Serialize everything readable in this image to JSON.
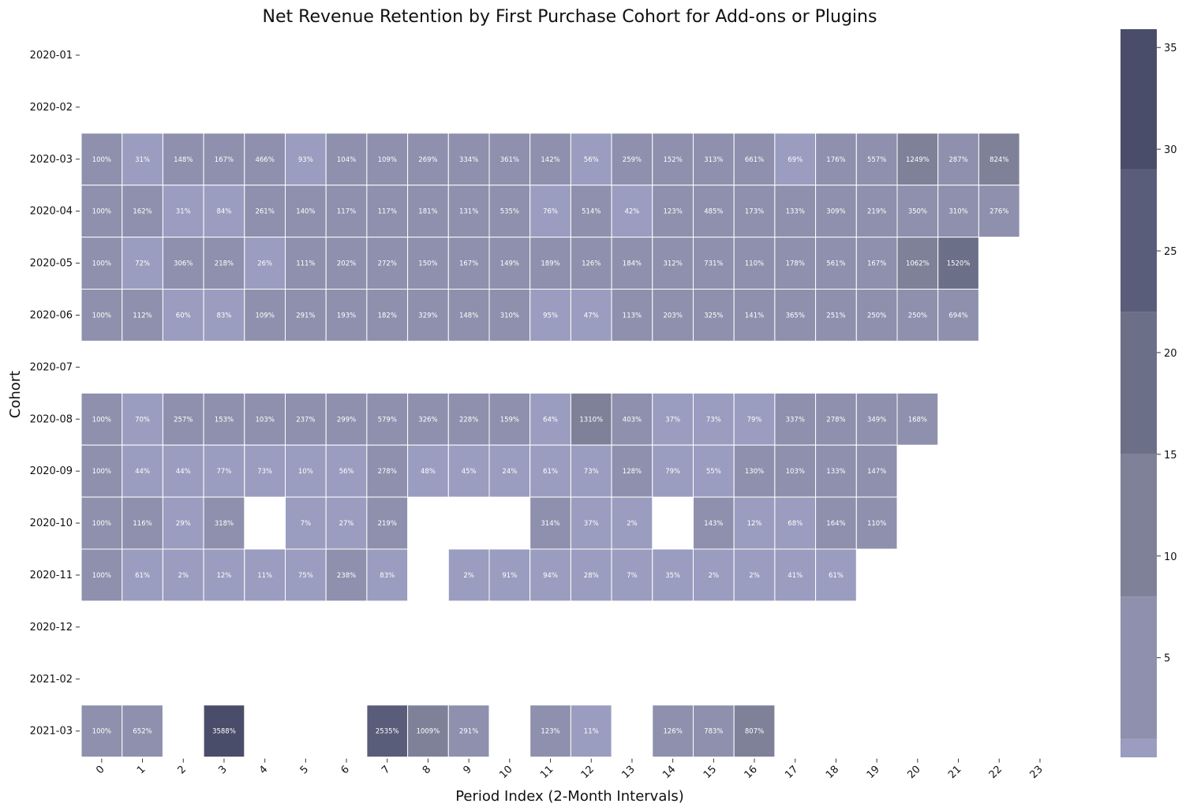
{
  "chart_data": {
    "type": "heatmap",
    "title": "Net Revenue Retention by First Purchase Cohort for Add-ons or Plugins",
    "xlabel": "Period Index (2-Month Intervals)",
    "ylabel": "Cohort",
    "x": [
      "0",
      "1",
      "2",
      "3",
      "4",
      "5",
      "6",
      "7",
      "8",
      "9",
      "10",
      "11",
      "12",
      "13",
      "14",
      "15",
      "16",
      "17",
      "18",
      "19",
      "20",
      "21",
      "22",
      "23"
    ],
    "y": [
      "2020-01",
      "2020-02",
      "2020-03",
      "2020-04",
      "2020-05",
      "2020-06",
      "2020-07",
      "2020-08",
      "2020-09",
      "2020-10",
      "2020-11",
      "2020-12",
      "2021-02",
      "2021-03"
    ],
    "values": [
      [
        null,
        null,
        null,
        null,
        null,
        null,
        null,
        null,
        null,
        null,
        null,
        null,
        null,
        null,
        null,
        null,
        null,
        null,
        null,
        null,
        null,
        null,
        null,
        null
      ],
      [
        null,
        null,
        null,
        null,
        null,
        null,
        null,
        null,
        null,
        null,
        null,
        null,
        null,
        null,
        null,
        null,
        null,
        null,
        null,
        null,
        null,
        null,
        null,
        null
      ],
      [
        100,
        31,
        148,
        167,
        466,
        93,
        104,
        109,
        269,
        334,
        361,
        142,
        56,
        259,
        152,
        313,
        661,
        69,
        176,
        557,
        1249,
        287,
        824,
        null
      ],
      [
        100,
        162,
        31,
        84,
        261,
        140,
        117,
        117,
        181,
        131,
        535,
        76,
        514,
        42,
        123,
        485,
        173,
        133,
        309,
        219,
        350,
        310,
        276,
        null
      ],
      [
        100,
        72,
        306,
        218,
        26,
        111,
        202,
        272,
        150,
        167,
        149,
        189,
        126,
        184,
        312,
        731,
        110,
        178,
        561,
        167,
        1062,
        1520,
        null,
        null
      ],
      [
        100,
        112,
        60,
        83,
        109,
        291,
        193,
        182,
        329,
        148,
        310,
        95,
        47,
        113,
        203,
        325,
        141,
        365,
        251,
        250,
        250,
        694,
        null,
        null
      ],
      [
        null,
        null,
        null,
        null,
        null,
        null,
        null,
        null,
        null,
        null,
        null,
        null,
        null,
        null,
        null,
        null,
        null,
        null,
        null,
        null,
        null,
        null,
        null,
        null
      ],
      [
        100,
        70,
        257,
        153,
        103,
        237,
        299,
        579,
        326,
        228,
        159,
        64,
        1310,
        403,
        37,
        73,
        79,
        337,
        278,
        349,
        168,
        null,
        null,
        null
      ],
      [
        100,
        44,
        44,
        77,
        73,
        10,
        56,
        278,
        48,
        45,
        24,
        61,
        73,
        128,
        79,
        55,
        130,
        103,
        133,
        147,
        null,
        null,
        null,
        null
      ],
      [
        100,
        116,
        29,
        318,
        null,
        7,
        27,
        219,
        null,
        null,
        null,
        314,
        37,
        2,
        null,
        143,
        12,
        68,
        164,
        110,
        null,
        null,
        null,
        null
      ],
      [
        100,
        61,
        2,
        12,
        11,
        75,
        238,
        83,
        null,
        2,
        91,
        94,
        28,
        7,
        35,
        2,
        2,
        41,
        61,
        null,
        null,
        null,
        null,
        null
      ],
      [
        null,
        null,
        null,
        null,
        null,
        null,
        null,
        null,
        null,
        null,
        null,
        null,
        null,
        null,
        null,
        null,
        null,
        null,
        null,
        null,
        null,
        null,
        null,
        null
      ],
      [
        null,
        null,
        null,
        null,
        null,
        null,
        null,
        null,
        null,
        null,
        null,
        null,
        null,
        null,
        null,
        null,
        null,
        null,
        null,
        null,
        null,
        null,
        null,
        null
      ],
      [
        100,
        652,
        null,
        3588,
        null,
        null,
        null,
        2535,
        1009,
        291,
        null,
        123,
        11,
        null,
        126,
        783,
        807,
        null,
        null,
        null,
        null,
        null,
        null,
        null
      ]
    ],
    "value_format": "percent",
    "colorbar": {
      "ticks": [
        5,
        10,
        15,
        20,
        25,
        30,
        35
      ],
      "range": [
        0.1,
        35.9
      ],
      "boundaries": [
        0.1,
        1,
        8,
        15,
        22,
        29,
        35.9
      ],
      "colors": [
        "#9a9dbf",
        "#8e90ad",
        "#7f8199",
        "#6c6f88",
        "#5a5d7a",
        "#4a4d6a"
      ]
    },
    "grid": false
  }
}
